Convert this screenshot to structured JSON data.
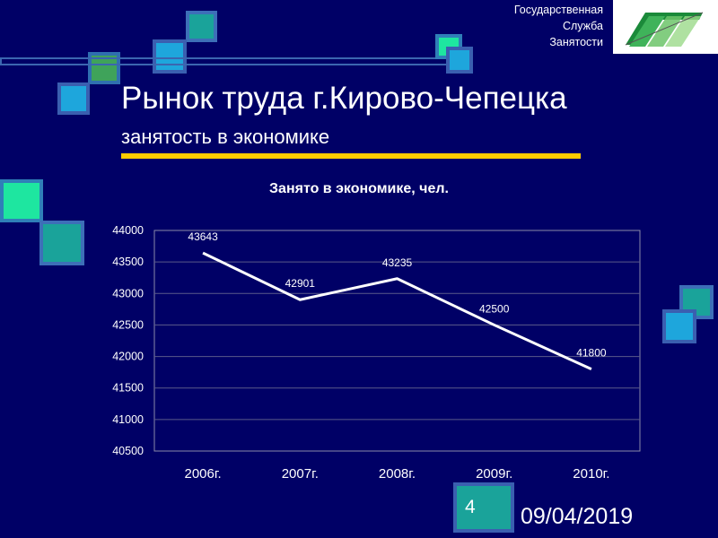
{
  "header": {
    "org_lines": [
      "Государственная",
      "Служба",
      "Занятости"
    ],
    "logo_icon": "gsz-logo-icon"
  },
  "slide": {
    "title": "Рынок труда г.Кирово-Чепецка",
    "subtitle": "занятость в экономике",
    "number": "4",
    "date": "09/04/2019"
  },
  "colors": {
    "background": "#000066",
    "accent_bar": "#ffcc00",
    "line": "#ffffff"
  },
  "chart_data": {
    "type": "line",
    "title": "Занято в экономике, чел.",
    "categories": [
      "2006г.",
      "2007г.",
      "2008г.",
      "2009г.",
      "2010г."
    ],
    "values": [
      43643,
      42901,
      43235,
      42500,
      41800
    ],
    "data_labels": [
      "43643",
      "42901",
      "43235",
      "42500",
      "41800"
    ],
    "yticks": [
      "44000",
      "43500",
      "43000",
      "42500",
      "42000",
      "41500",
      "41000",
      "40500"
    ],
    "ylim": [
      40500,
      44000
    ],
    "grid": true,
    "legend": "none"
  }
}
